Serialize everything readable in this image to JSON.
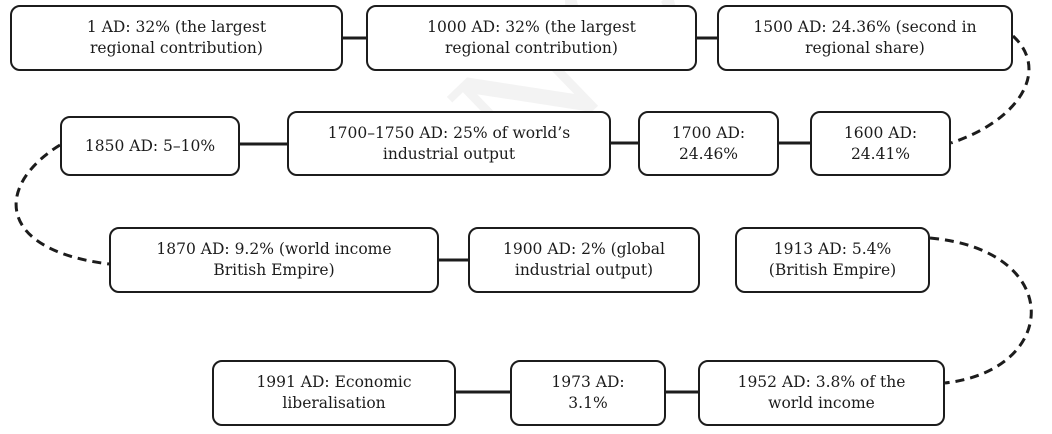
{
  "nodes": [
    {
      "id": "b1",
      "text": "1 AD: 32% (the largest\nregional contribution)"
    },
    {
      "id": "b2",
      "text": "1000 AD: 32% (the largest\nregional contribution)"
    },
    {
      "id": "b3",
      "text": "1500 AD: 24.36% (second in\nregional share)"
    },
    {
      "id": "b4",
      "text": "1850 AD: 5–10%"
    },
    {
      "id": "b5",
      "text": "1700–1750 AD: 25% of world’s\nindustrial output"
    },
    {
      "id": "b6",
      "text": "1700 AD:\n24.46%"
    },
    {
      "id": "b7",
      "text": "1600 AD:\n24.41%"
    },
    {
      "id": "b8",
      "text": "1870 AD: 9.2% (world income\nBritish Empire)"
    },
    {
      "id": "b9",
      "text": "1900 AD: 2% (global\nindustrial output)"
    },
    {
      "id": "b10",
      "text": "1913 AD: 5.4%\n(British Empire)"
    },
    {
      "id": "b11",
      "text": "1991 AD: Economic\nliberalisation"
    },
    {
      "id": "b12",
      "text": "1973 AD:\n3.1%"
    },
    {
      "id": "b13",
      "text": "1952 AD: 3.8% of the\nworld income"
    }
  ],
  "edges": [
    {
      "from": "b1",
      "to": "b2",
      "style": "solid"
    },
    {
      "from": "b2",
      "to": "b3",
      "style": "solid"
    },
    {
      "from": "b3",
      "to": "b7",
      "style": "dashed"
    },
    {
      "from": "b7",
      "to": "b6",
      "style": "solid"
    },
    {
      "from": "b6",
      "to": "b5",
      "style": "solid"
    },
    {
      "from": "b5",
      "to": "b4",
      "style": "solid"
    },
    {
      "from": "b4",
      "to": "b8",
      "style": "dashed"
    },
    {
      "from": "b8",
      "to": "b9",
      "style": "solid"
    },
    {
      "from": "b10",
      "to": "b13",
      "style": "dashed"
    },
    {
      "from": "b13",
      "to": "b12",
      "style": "solid"
    },
    {
      "from": "b12",
      "to": "b11",
      "style": "solid"
    }
  ],
  "colors": {
    "stroke": "#1c1c1c",
    "background": "#ffffff"
  },
  "watermark": "NCERT Published"
}
